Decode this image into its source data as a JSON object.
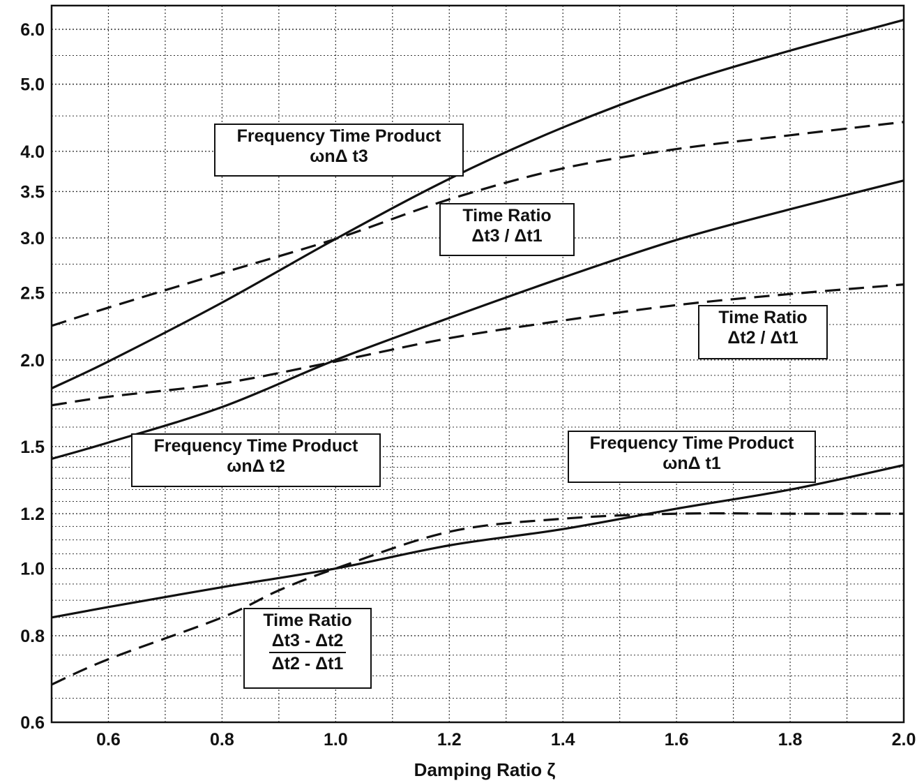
{
  "chart_data": {
    "type": "line",
    "title": "",
    "xlabel": "Damping Ratio ζ",
    "ylabel": "",
    "xlim": [
      0.5,
      2.0
    ],
    "ylim": [
      0.6,
      6.4
    ],
    "yscale": "log",
    "grid": true,
    "x_ticks": [
      0.6,
      0.8,
      1.0,
      1.2,
      1.4,
      1.6,
      1.8,
      2.0
    ],
    "x_tick_labels": [
      "0.6",
      "0.8",
      "1.0",
      "1.2",
      "1.4",
      "1.6",
      "1.8",
      "2.0"
    ],
    "y_ticks": [
      0.6,
      0.8,
      1.0,
      1.2,
      1.5,
      2.0,
      2.5,
      3.0,
      3.5,
      4.0,
      5.0,
      6.0
    ],
    "y_tick_labels": [
      "0.6",
      "0.8",
      "1.0",
      "1.2",
      "1.5",
      "2.0",
      "2.5",
      "3.0",
      "3.5",
      "4.0",
      "5.0",
      "6.0"
    ],
    "y_minor_grid": [
      0.65,
      0.7,
      0.75,
      0.85,
      0.9,
      0.95,
      1.05,
      1.1,
      1.15,
      1.25,
      1.3,
      1.35,
      1.4,
      1.45,
      1.6,
      1.7,
      1.8,
      1.9,
      2.25,
      2.75,
      4.5,
      5.5
    ],
    "x_minor_grid": [
      0.7,
      0.9,
      1.1,
      1.3,
      1.5,
      1.7,
      1.9
    ],
    "series": [
      {
        "style": "solid",
        "x": [
          0.5,
          0.6,
          0.8,
          1.0,
          1.2,
          1.4,
          1.6,
          1.8,
          2.0
        ],
        "y": [
          1.82,
          1.99,
          2.42,
          2.99,
          3.65,
          4.33,
          4.99,
          5.59,
          6.19
        ]
      },
      {
        "style": "dashed",
        "x": [
          0.5,
          0.6,
          0.8,
          1.0,
          1.2,
          1.4,
          1.6,
          1.8,
          2.0
        ],
        "y": [
          2.24,
          2.38,
          2.67,
          2.99,
          3.41,
          3.78,
          4.03,
          4.22,
          4.41
        ]
      },
      {
        "style": "solid",
        "x": [
          0.5,
          0.6,
          0.8,
          1.0,
          1.2,
          1.4,
          1.6,
          1.8,
          2.0
        ],
        "y": [
          1.44,
          1.52,
          1.71,
          2.0,
          2.3,
          2.63,
          2.98,
          3.3,
          3.63
        ]
      },
      {
        "style": "dashed",
        "x": [
          0.5,
          0.6,
          0.8,
          1.0,
          1.2,
          1.4,
          1.6,
          1.8,
          2.0
        ],
        "y": [
          1.72,
          1.77,
          1.85,
          1.99,
          2.15,
          2.28,
          2.4,
          2.49,
          2.57
        ]
      },
      {
        "style": "solid",
        "x": [
          0.5,
          0.6,
          0.8,
          1.0,
          1.2,
          1.4,
          1.6,
          1.8,
          2.0
        ],
        "y": [
          0.85,
          0.88,
          0.94,
          1.0,
          1.08,
          1.14,
          1.22,
          1.3,
          1.41
        ]
      },
      {
        "style": "dashed",
        "x": [
          0.5,
          0.6,
          0.8,
          0.9,
          1.0,
          1.2,
          1.4,
          1.6,
          1.8,
          2.0
        ],
        "y": [
          0.68,
          0.74,
          0.85,
          0.93,
          1.0,
          1.13,
          1.18,
          1.2,
          1.2,
          1.2
        ]
      }
    ],
    "annotations": [
      {
        "key": "fp3",
        "line1": "Frequency Time Product",
        "line2": "ωnΔ t3"
      },
      {
        "key": "tr31",
        "line1": "Time Ratio",
        "line2": "Δt3 / Δt1"
      },
      {
        "key": "tr21",
        "line1": "Time Ratio",
        "line2": "Δt2 / Δt1"
      },
      {
        "key": "fp2",
        "line1": "Frequency Time Product",
        "line2": "ωnΔ t2"
      },
      {
        "key": "fp1",
        "line1": "Frequency Time Product",
        "line2": "ωnΔ t1"
      },
      {
        "key": "tr32",
        "line1": "Time Ratio",
        "numerator": "Δt3 - Δt2",
        "denominator": "Δt2 - Δt1"
      }
    ]
  },
  "colors": {
    "line": "#111111",
    "grid": "#333333",
    "background": "#ffffff"
  }
}
